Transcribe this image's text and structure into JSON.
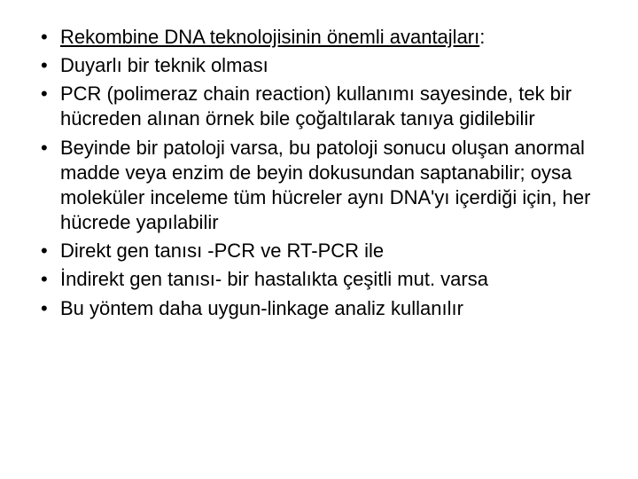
{
  "slide": {
    "text_color": "#000000",
    "background_color": "#ffffff",
    "font_family": "Comic Sans MS",
    "font_size_pt": 22,
    "bullets": [
      {
        "text_prefix": "Rekombine DNA teknolojisinin önemli avantajları",
        "text_suffix": ":",
        "underline": true
      },
      {
        "text": "Duyarlı bir teknik olması"
      },
      {
        "text": "PCR (polimeraz chain reaction) kullanımı sayesinde, tek bir hücreden alınan örnek bile çoğaltılarak tanıya gidilebilir"
      },
      {
        "text": "Beyinde bir patoloji varsa, bu patoloji sonucu oluşan anormal madde veya enzim de beyin dokusundan saptanabilir; oysa moleküler inceleme tüm hücreler aynı DNA'yı içerdiği için, her hücrede yapılabilir"
      },
      {
        "text": "Direkt gen tanısı -PCR ve RT-PCR ile"
      },
      {
        "text": "İndirekt gen tanısı- bir hastalıkta çeşitli mut. varsa"
      },
      {
        "text": "Bu yöntem daha uygun-linkage analiz kullanılır"
      }
    ]
  }
}
